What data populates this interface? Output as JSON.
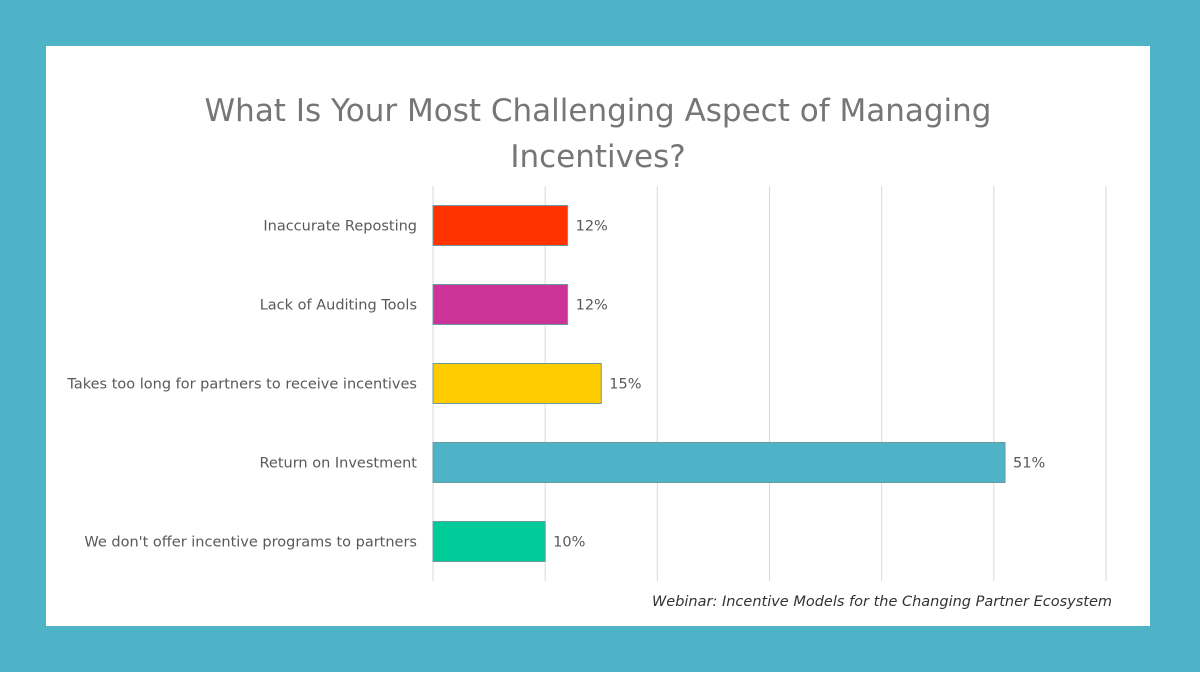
{
  "chart_data": {
    "type": "bar",
    "orientation": "horizontal",
    "title_lines": [
      "What Is Your Most Challenging Aspect of Managing",
      "Incentives?"
    ],
    "categories": [
      "Inaccurate Reposting",
      "Lack of Auditing Tools",
      "Takes too long for partners to receive incentives",
      "Return on Investment",
      "We don't offer incentive programs to partners"
    ],
    "values": [
      12,
      12,
      15,
      51,
      10
    ],
    "value_labels": [
      "12%",
      "12%",
      "15%",
      "51%",
      "10%"
    ],
    "colors": [
      "#ff3300",
      "#cc3399",
      "#ffcc00",
      "#4fb3c8",
      "#00cc99"
    ],
    "xlim": [
      0,
      60
    ],
    "x_gridlines": [
      0,
      10,
      20,
      30,
      40,
      50,
      60
    ],
    "grid": true,
    "legend": "none"
  },
  "footer": "Webinar: Incentive Models for the Changing Partner Ecosystem"
}
